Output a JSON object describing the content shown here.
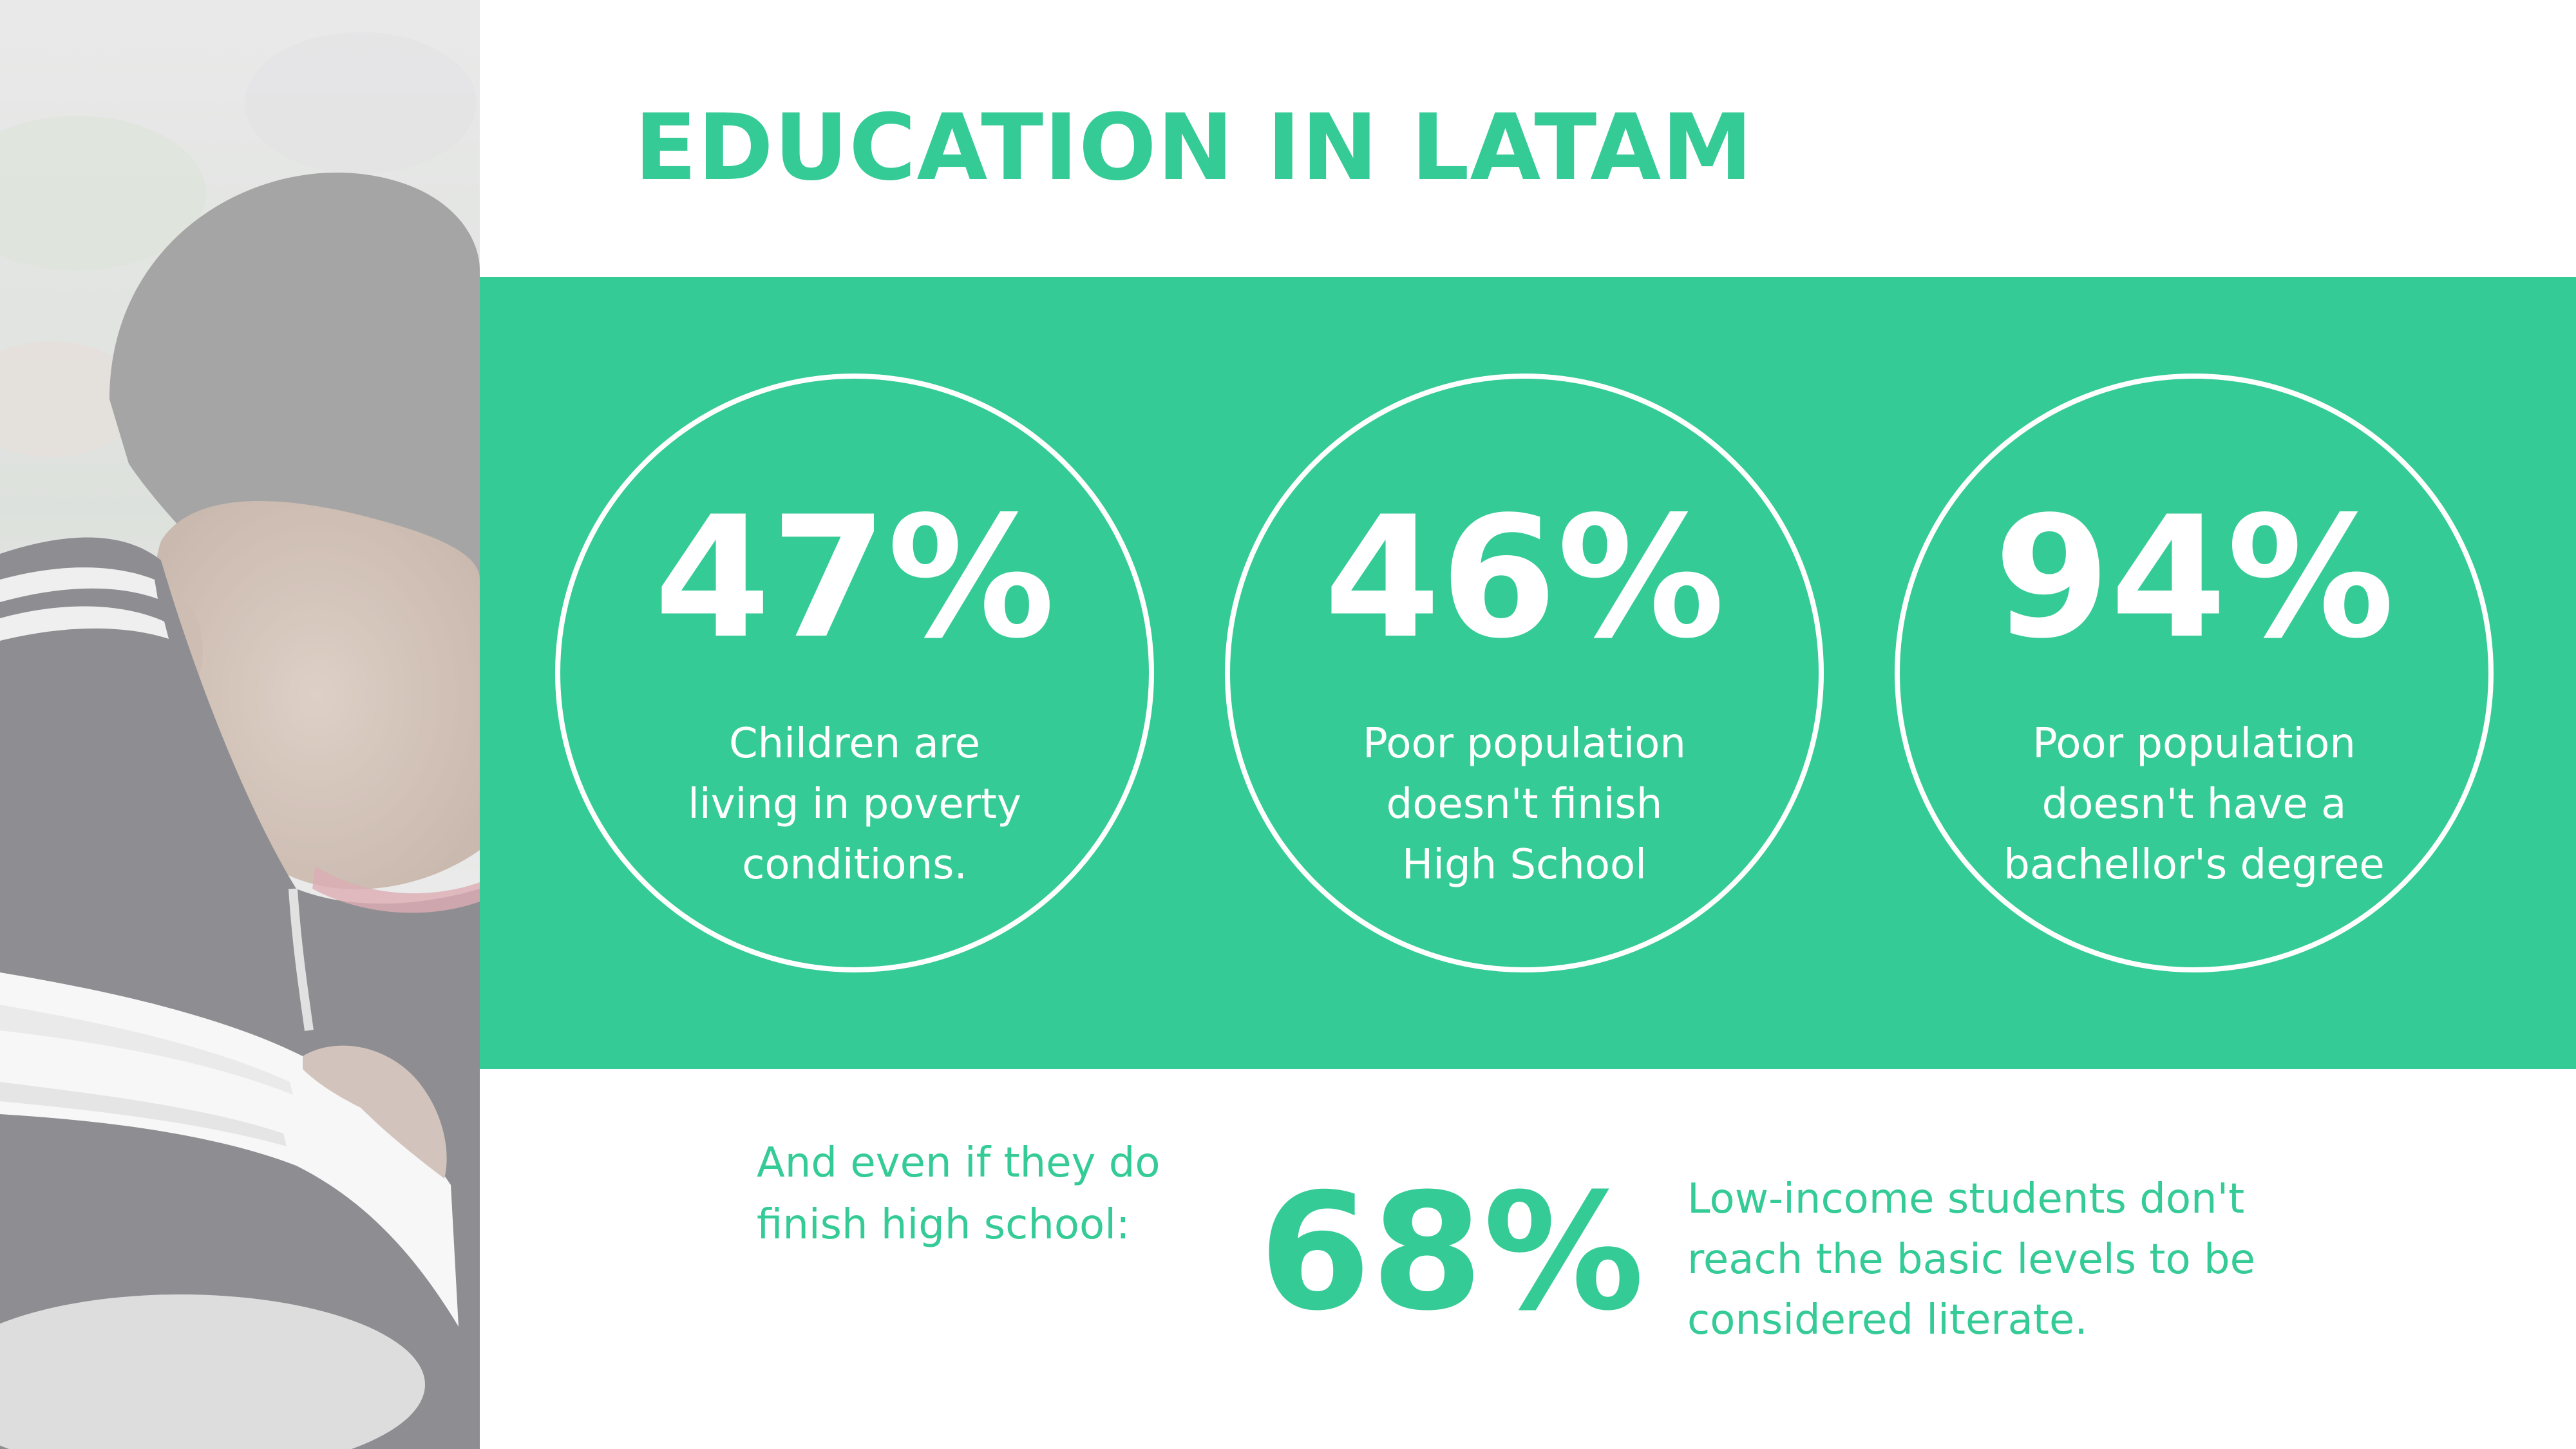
{
  "title": "EDUCATION IN LATAM",
  "colors": {
    "accent": "#35cb97",
    "text_on_accent": "#ffffff",
    "background": "#ffffff"
  },
  "photo": {
    "description_icon": "student-reading-photo"
  },
  "stats": [
    {
      "value": "47%",
      "description": "Children are\nliving in poverty\nconditions."
    },
    {
      "value": "46%",
      "description": "Poor population\ndoesn't finish\nHigh School"
    },
    {
      "value": "94%",
      "description": "Poor population\ndoesn't have a\nbachellor's degree"
    }
  ],
  "bottom": {
    "lead": "And even if they do\nfinish high school:",
    "value": "68%",
    "description": "Low-income students don't\nreach the basic levels to be\nconsidered literate."
  }
}
